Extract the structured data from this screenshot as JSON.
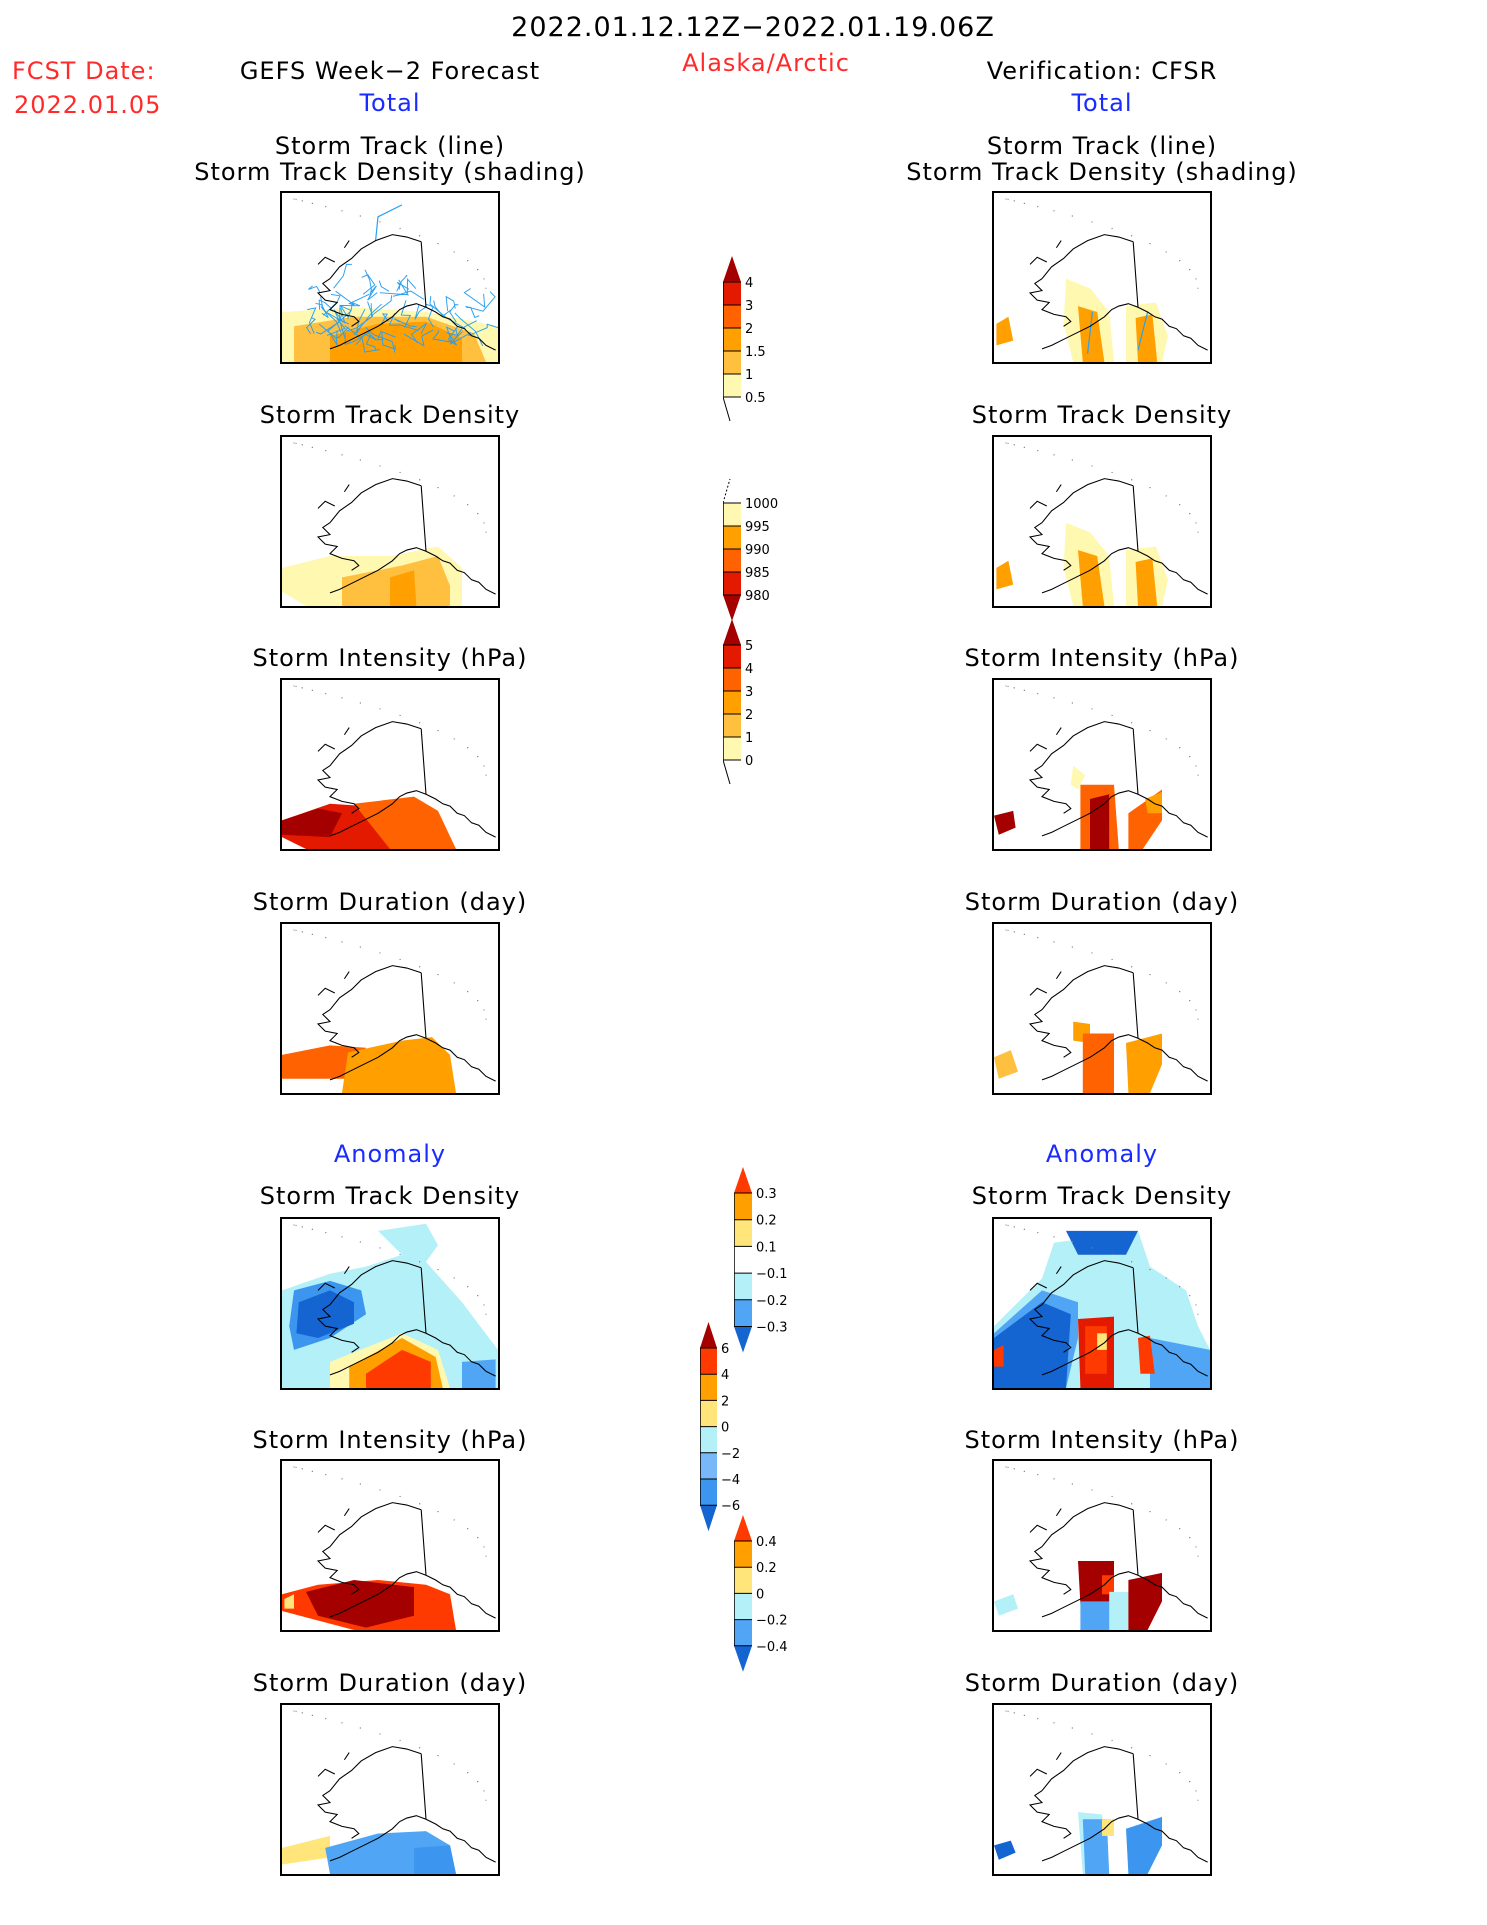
{
  "header": {
    "title": "2022.01.12.12Z−2022.01.19.06Z",
    "fcst_label": "FCST Date:",
    "fcst_date": "2022.01.05",
    "left_heading": "GEFS Week−2 Forecast",
    "region": "Alaska/Arctic",
    "right_heading": "Verification: CFSR",
    "total_label_left": "Total",
    "total_label_right": "Total",
    "anomaly_label_left": "Anomaly",
    "anomaly_label_right": "Anomaly"
  },
  "panel_titles": {
    "track_line": "Storm Track (line)",
    "track_density_shading": "Storm Track Density (shading)",
    "density": "Storm Track Density",
    "intensity": "Storm Intensity (hPa)",
    "duration": "Storm Duration (day)"
  },
  "chart_data": [
    {
      "type": "heatmap",
      "name": "total-density",
      "ticks": [
        "4",
        "3",
        "2",
        "1.5",
        "1",
        "0.5"
      ],
      "colors": [
        "#a50000",
        "#e31a00",
        "#ff6200",
        "#ffa000",
        "#ffc040",
        "#fff8b0"
      ],
      "extend": "max"
    },
    {
      "type": "heatmap",
      "name": "total-intensity",
      "ticks": [
        "1000",
        "995",
        "990",
        "985",
        "980"
      ],
      "colors": [
        "#fff8b0",
        "#ffa000",
        "#ff6200",
        "#e31a00",
        "#a50000"
      ],
      "extend": "min"
    },
    {
      "type": "heatmap",
      "name": "total-duration",
      "ticks": [
        "5",
        "4",
        "3",
        "2",
        "1",
        "0"
      ],
      "colors": [
        "#a50000",
        "#e31a00",
        "#ff6200",
        "#ffa000",
        "#ffc040",
        "#fff8b0"
      ],
      "extend": "max"
    },
    {
      "type": "heatmap",
      "name": "anomaly-density",
      "ticks": [
        "0.3",
        "0.2",
        "0.1",
        "−0.1",
        "−0.2",
        "−0.3"
      ],
      "colors": [
        "#ff3a00",
        "#ffa000",
        "#ffe57a",
        "#ffffff",
        "#b4f0f8",
        "#50a5f5",
        "#1464d2"
      ],
      "extend": "both"
    },
    {
      "type": "heatmap",
      "name": "anomaly-intensity",
      "ticks": [
        "6",
        "4",
        "2",
        "0",
        "−2",
        "−4",
        "−6"
      ],
      "colors": [
        "#a50000",
        "#ff3a00",
        "#ffa000",
        "#ffe57a",
        "#b4f0f8",
        "#78b8f8",
        "#3c96f0",
        "#1464d2"
      ],
      "extend": "both"
    },
    {
      "type": "heatmap",
      "name": "anomaly-duration",
      "ticks": [
        "0.4",
        "0.2",
        "0",
        "−0.2",
        "−0.4"
      ],
      "colors": [
        "#ff3a00",
        "#ffa000",
        "#ffe57a",
        "#b4f0f8",
        "#50a5f5",
        "#1464d2"
      ],
      "extend": "both"
    }
  ]
}
